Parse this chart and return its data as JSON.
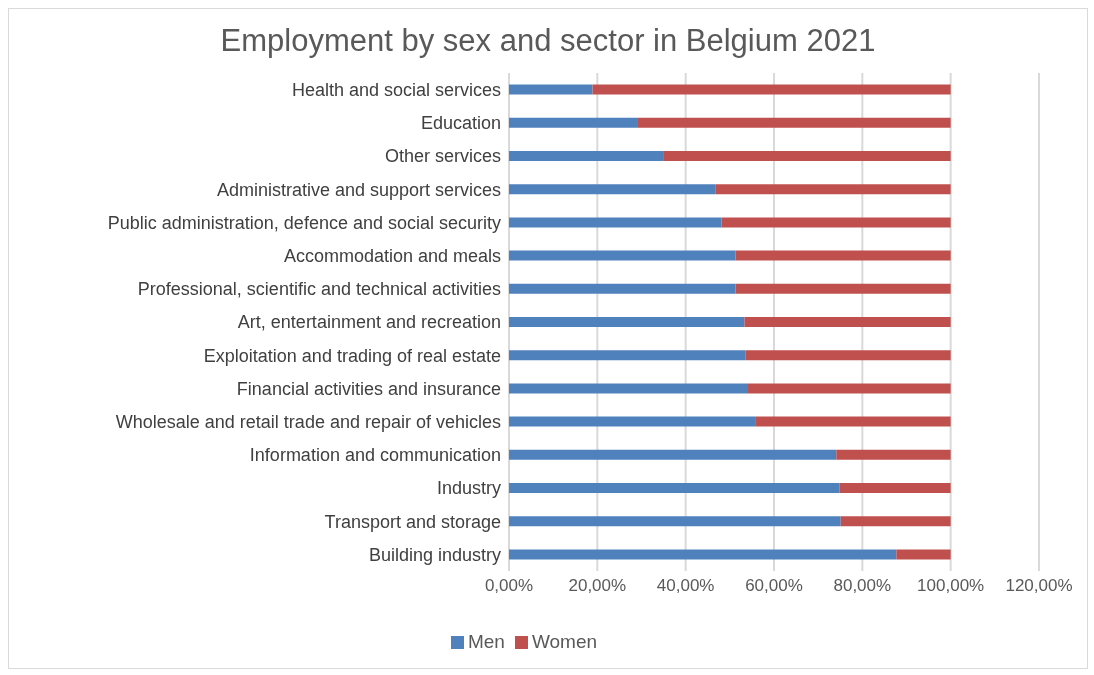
{
  "chart_data": {
    "type": "bar",
    "title": "Employment by sex and sector in Belgium 2021",
    "orientation": "horizontal",
    "stacked": true,
    "categories": [
      "Health and social services",
      "Education",
      "Other services",
      "Administrative and support services",
      "Public administration, defence and social security",
      "Accommodation and meals",
      "Professional, scientific and technical activities",
      "Art, entertainment and recreation",
      "Exploitation and trading of real estate",
      "Financial activities and insurance",
      "Wholesale and retail trade and repair of vehicles",
      "Information and communication",
      "Industry",
      "Transport and storage",
      "Building industry"
    ],
    "series": [
      {
        "name": "Men",
        "color": "#4f81bd",
        "values": [
          18.9,
          29.2,
          34.9,
          46.7,
          48.1,
          51.3,
          51.3,
          53.3,
          53.6,
          53.9,
          55.9,
          74.1,
          74.8,
          75.1,
          87.7
        ]
      },
      {
        "name": "Women",
        "color": "#c0504d",
        "values": [
          81.1,
          70.8,
          65.1,
          53.3,
          51.9,
          48.7,
          48.7,
          46.7,
          46.4,
          46.1,
          44.1,
          25.9,
          25.2,
          24.9,
          12.3
        ]
      }
    ],
    "xlim": [
      0,
      120
    ],
    "xticks": [
      {
        "value": 0,
        "label": "0,00%"
      },
      {
        "value": 20,
        "label": "20,00%"
      },
      {
        "value": 40,
        "label": "40,00%"
      },
      {
        "value": 60,
        "label": "60,00%"
      },
      {
        "value": 80,
        "label": "80,00%"
      },
      {
        "value": 100,
        "label": "100,00%"
      },
      {
        "value": 120,
        "label": "120,00%"
      }
    ],
    "grid": "x",
    "legend": "bottom"
  }
}
